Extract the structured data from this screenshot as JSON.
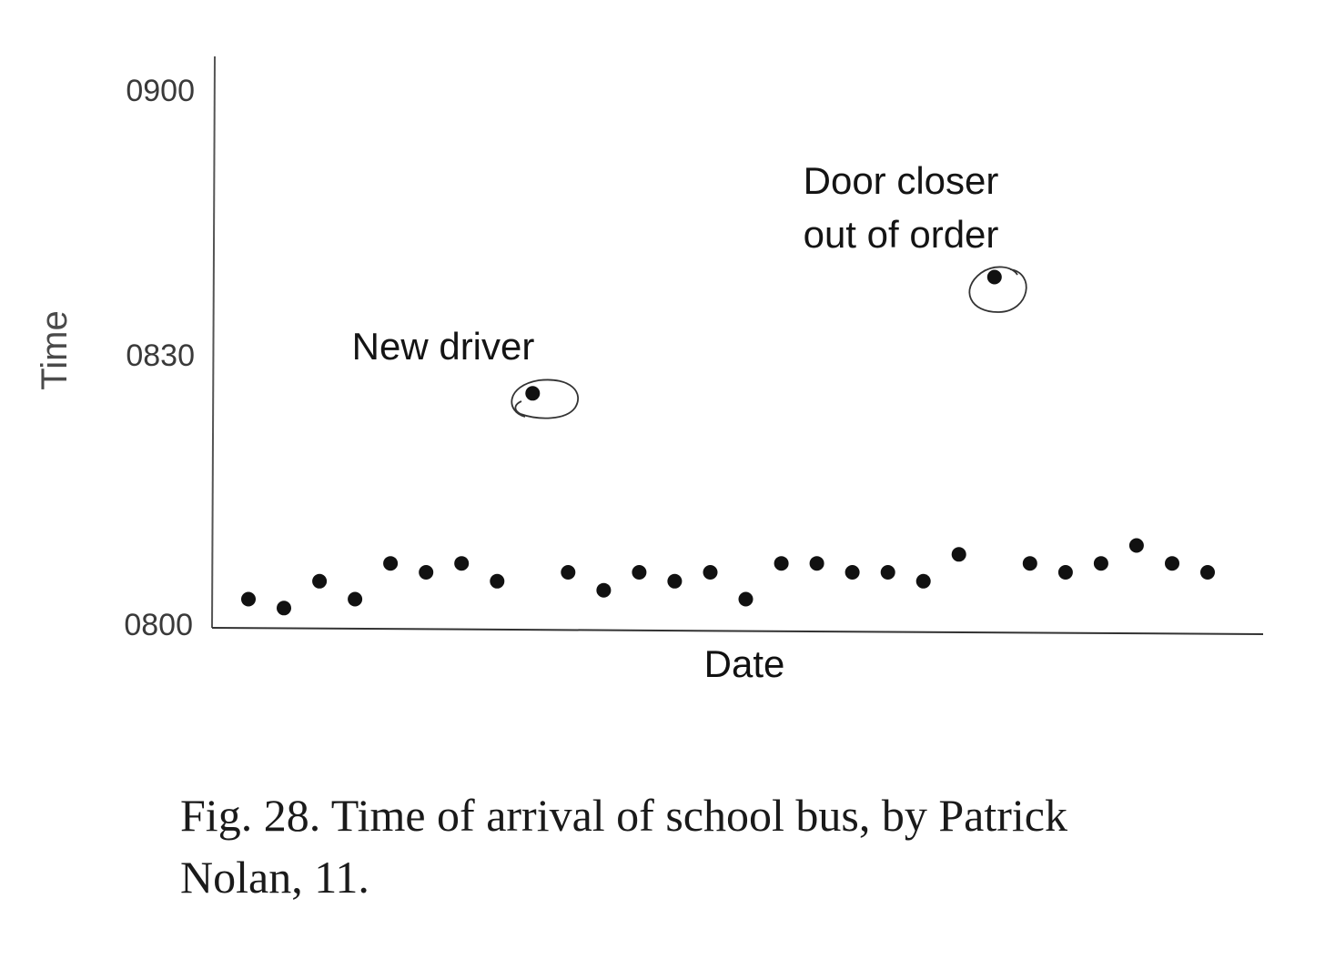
{
  "chart_data": {
    "type": "scatter",
    "xlabel": "Date",
    "ylabel": "Time",
    "y_ticks": [
      "0800",
      "0830",
      "0900"
    ],
    "y_tick_minutes": [
      0,
      30,
      60
    ],
    "ylim_minutes": [
      0,
      60
    ],
    "x_has_tick_labels": false,
    "grid": false,
    "points": [
      {
        "x": 1,
        "y": "0803"
      },
      {
        "x": 2,
        "y": "0802"
      },
      {
        "x": 3,
        "y": "0805"
      },
      {
        "x": 4,
        "y": "0803"
      },
      {
        "x": 5,
        "y": "0807"
      },
      {
        "x": 6,
        "y": "0806"
      },
      {
        "x": 7,
        "y": "0807"
      },
      {
        "x": 8,
        "y": "0805"
      },
      {
        "x": 9,
        "y": "0826"
      },
      {
        "x": 10,
        "y": "0806"
      },
      {
        "x": 11,
        "y": "0804"
      },
      {
        "x": 12,
        "y": "0806"
      },
      {
        "x": 13,
        "y": "0805"
      },
      {
        "x": 14,
        "y": "0806"
      },
      {
        "x": 15,
        "y": "0803"
      },
      {
        "x": 16,
        "y": "0807"
      },
      {
        "x": 17,
        "y": "0807"
      },
      {
        "x": 18,
        "y": "0806"
      },
      {
        "x": 19,
        "y": "0806"
      },
      {
        "x": 20,
        "y": "0805"
      },
      {
        "x": 21,
        "y": "0808"
      },
      {
        "x": 22,
        "y": "0839"
      },
      {
        "x": 23,
        "y": "0807"
      },
      {
        "x": 24,
        "y": "0806"
      },
      {
        "x": 25,
        "y": "0807"
      },
      {
        "x": 26,
        "y": "0809"
      },
      {
        "x": 27,
        "y": "0807"
      },
      {
        "x": 28,
        "y": "0806"
      }
    ],
    "point_minutes": [
      3,
      2,
      5,
      3,
      7,
      6,
      7,
      5,
      26,
      6,
      4,
      6,
      5,
      6,
      3,
      7,
      7,
      6,
      6,
      5,
      8,
      39,
      7,
      6,
      7,
      9,
      7,
      6
    ],
    "annotations": [
      {
        "lines": [
          "New driver"
        ],
        "point_index": 8,
        "circled": true
      },
      {
        "lines": [
          "Door closer",
          "out of order"
        ],
        "point_index": 21,
        "circled": true
      }
    ]
  },
  "caption": {
    "line1": "Fig. 28. Time of arrival of school bus, by Patrick",
    "line2": "Nolan, 11."
  }
}
